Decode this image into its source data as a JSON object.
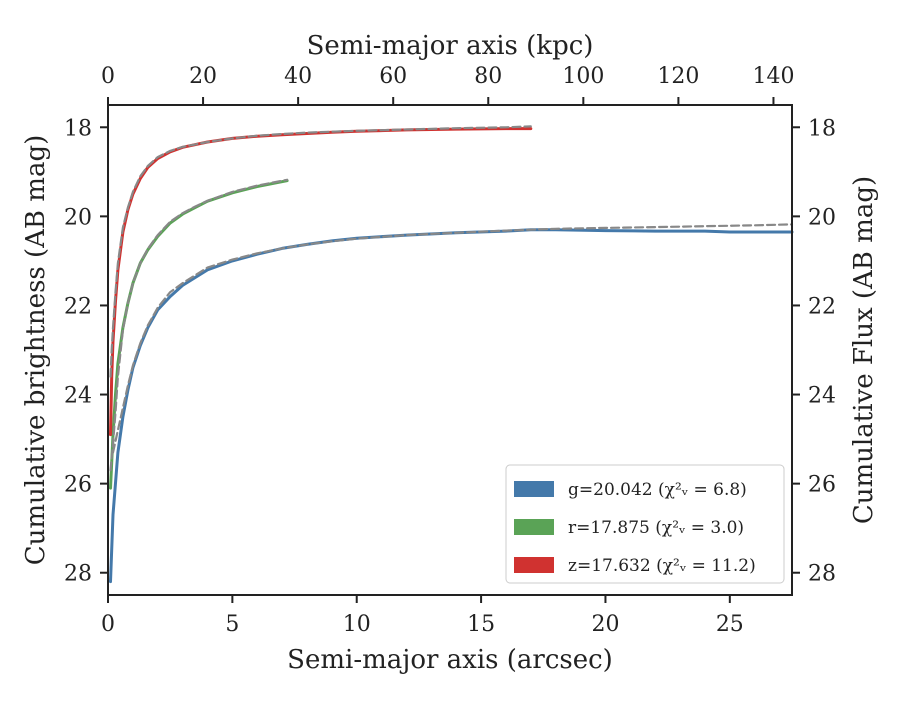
{
  "chart_data": {
    "type": "line",
    "xlabel": "Semi-major axis (arcsec)",
    "x2label": "Semi-major axis (kpc)",
    "ylabel": "Cumulative brightness (AB mag)",
    "y2label": "Cumulative Flux (AB mag)",
    "xlim": [
      0,
      27.5
    ],
    "x2lim": [
      0,
      143.9
    ],
    "ylim": [
      28.5,
      17.5
    ],
    "y_inverted": true,
    "x_ticks": [
      0,
      5,
      10,
      15,
      20,
      25
    ],
    "x_tick_labels": [
      "0",
      "5",
      "10",
      "15",
      "20",
      "25"
    ],
    "x2_ticks": [
      0,
      20,
      40,
      60,
      80,
      100,
      120,
      140
    ],
    "x2_tick_labels": [
      "0",
      "20",
      "40",
      "60",
      "80",
      "100",
      "120",
      "140"
    ],
    "y_ticks": [
      18,
      20,
      22,
      24,
      26,
      28
    ],
    "y_tick_labels": [
      "18",
      "20",
      "22",
      "24",
      "26",
      "28"
    ],
    "grid": false,
    "legend_position": "lower-right",
    "series": [
      {
        "key": "g",
        "label": "g=20.042 (χ²ᵥ = 6.8)",
        "color": "#4479aa",
        "x": [
          0.1,
          0.2,
          0.4,
          0.6,
          0.8,
          1.0,
          1.3,
          1.6,
          2.0,
          2.5,
          3.0,
          4.0,
          5.0,
          6.0,
          7.0,
          8.0,
          9.0,
          10.0,
          12.0,
          14.0,
          16.0,
          17.0,
          18.0,
          20.0,
          22.0,
          24.0,
          25.0,
          26.0,
          27.5
        ],
        "y": [
          28.2,
          26.7,
          25.3,
          24.5,
          23.9,
          23.4,
          22.9,
          22.5,
          22.1,
          21.8,
          21.55,
          21.2,
          21.0,
          20.85,
          20.72,
          20.63,
          20.55,
          20.49,
          20.42,
          20.37,
          20.33,
          20.3,
          20.3,
          20.32,
          20.33,
          20.33,
          20.35,
          20.35,
          20.35
        ]
      },
      {
        "key": "g_model",
        "color": "#888888",
        "dashed": true,
        "x": [
          0.2,
          0.4,
          0.6,
          0.8,
          1.0,
          1.3,
          1.6,
          2.0,
          2.5,
          3.0,
          4.0,
          5.0,
          6.0,
          7.0,
          8.0,
          9.0,
          10.0,
          12.0,
          14.0,
          16.0,
          18.0,
          20.0,
          22.0,
          24.0,
          26.0,
          27.5
        ],
        "y": [
          25.3,
          24.8,
          24.3,
          23.8,
          23.35,
          22.85,
          22.45,
          22.05,
          21.7,
          21.5,
          21.15,
          20.97,
          20.83,
          20.72,
          20.63,
          20.56,
          20.5,
          20.42,
          20.37,
          20.32,
          20.28,
          20.26,
          20.24,
          20.22,
          20.2,
          20.18
        ]
      },
      {
        "key": "r",
        "label": "r=17.875 (χ²ᵥ = 3.0)",
        "color": "#5aa356",
        "x": [
          0.1,
          0.2,
          0.3,
          0.4,
          0.6,
          0.8,
          1.0,
          1.3,
          1.6,
          2.0,
          2.5,
          3.0,
          3.5,
          4.0,
          5.0,
          6.0,
          7.2
        ],
        "y": [
          26.1,
          24.9,
          24.0,
          23.3,
          22.5,
          21.95,
          21.5,
          21.05,
          20.75,
          20.45,
          20.15,
          19.95,
          19.8,
          19.66,
          19.47,
          19.33,
          19.2
        ]
      },
      {
        "key": "r_model",
        "color": "#888888",
        "dashed": true,
        "x": [
          0.1,
          0.2,
          0.3,
          0.4,
          0.6,
          0.8,
          1.0,
          1.3,
          1.6,
          2.0,
          2.5,
          3.0,
          3.5,
          4.0,
          5.0,
          6.0,
          7.2
        ],
        "y": [
          25.7,
          25.1,
          24.4,
          23.6,
          22.55,
          21.95,
          21.5,
          21.05,
          20.73,
          20.42,
          20.12,
          19.93,
          19.78,
          19.65,
          19.45,
          19.31,
          19.18
        ]
      },
      {
        "key": "z",
        "label": "z=17.632 (χ²ᵥ = 11.2)",
        "color": "#d03230",
        "x": [
          0.1,
          0.15,
          0.2,
          0.3,
          0.4,
          0.6,
          0.8,
          1.0,
          1.3,
          1.6,
          2.0,
          2.5,
          3.0,
          4.0,
          5.0,
          6.0,
          7.0,
          8.0,
          9.0,
          10.0,
          12.0,
          14.0,
          16.0,
          17.0
        ],
        "y": [
          24.9,
          23.6,
          22.8,
          21.9,
          21.2,
          20.35,
          19.85,
          19.5,
          19.15,
          18.9,
          18.7,
          18.55,
          18.45,
          18.33,
          18.25,
          18.2,
          18.17,
          18.14,
          18.11,
          18.09,
          18.06,
          18.04,
          18.03,
          18.03
        ]
      },
      {
        "key": "z_model",
        "color": "#888888",
        "dashed": true,
        "x": [
          0.1,
          0.15,
          0.2,
          0.3,
          0.4,
          0.6,
          0.8,
          1.0,
          1.3,
          1.6,
          2.0,
          2.5,
          3.0,
          4.0,
          5.0,
          6.0,
          7.0,
          8.0,
          9.0,
          10.0,
          12.0,
          14.0,
          16.0,
          17.0
        ],
        "y": [
          23.6,
          23.0,
          22.5,
          21.7,
          21.05,
          20.25,
          19.8,
          19.45,
          19.1,
          18.87,
          18.67,
          18.53,
          18.44,
          18.33,
          18.25,
          18.19,
          18.15,
          18.12,
          18.1,
          18.08,
          18.05,
          18.02,
          18.0,
          17.98
        ]
      }
    ],
    "legend": [
      {
        "series": "g",
        "label": "g=20.042 (χ²ᵥ = 6.8)",
        "color": "#4479aa"
      },
      {
        "series": "r",
        "label": "r=17.875 (χ²ᵥ = 3.0)",
        "color": "#5aa356"
      },
      {
        "series": "z",
        "label": "z=17.632 (χ²ᵥ = 11.2)",
        "color": "#d03230"
      }
    ]
  }
}
